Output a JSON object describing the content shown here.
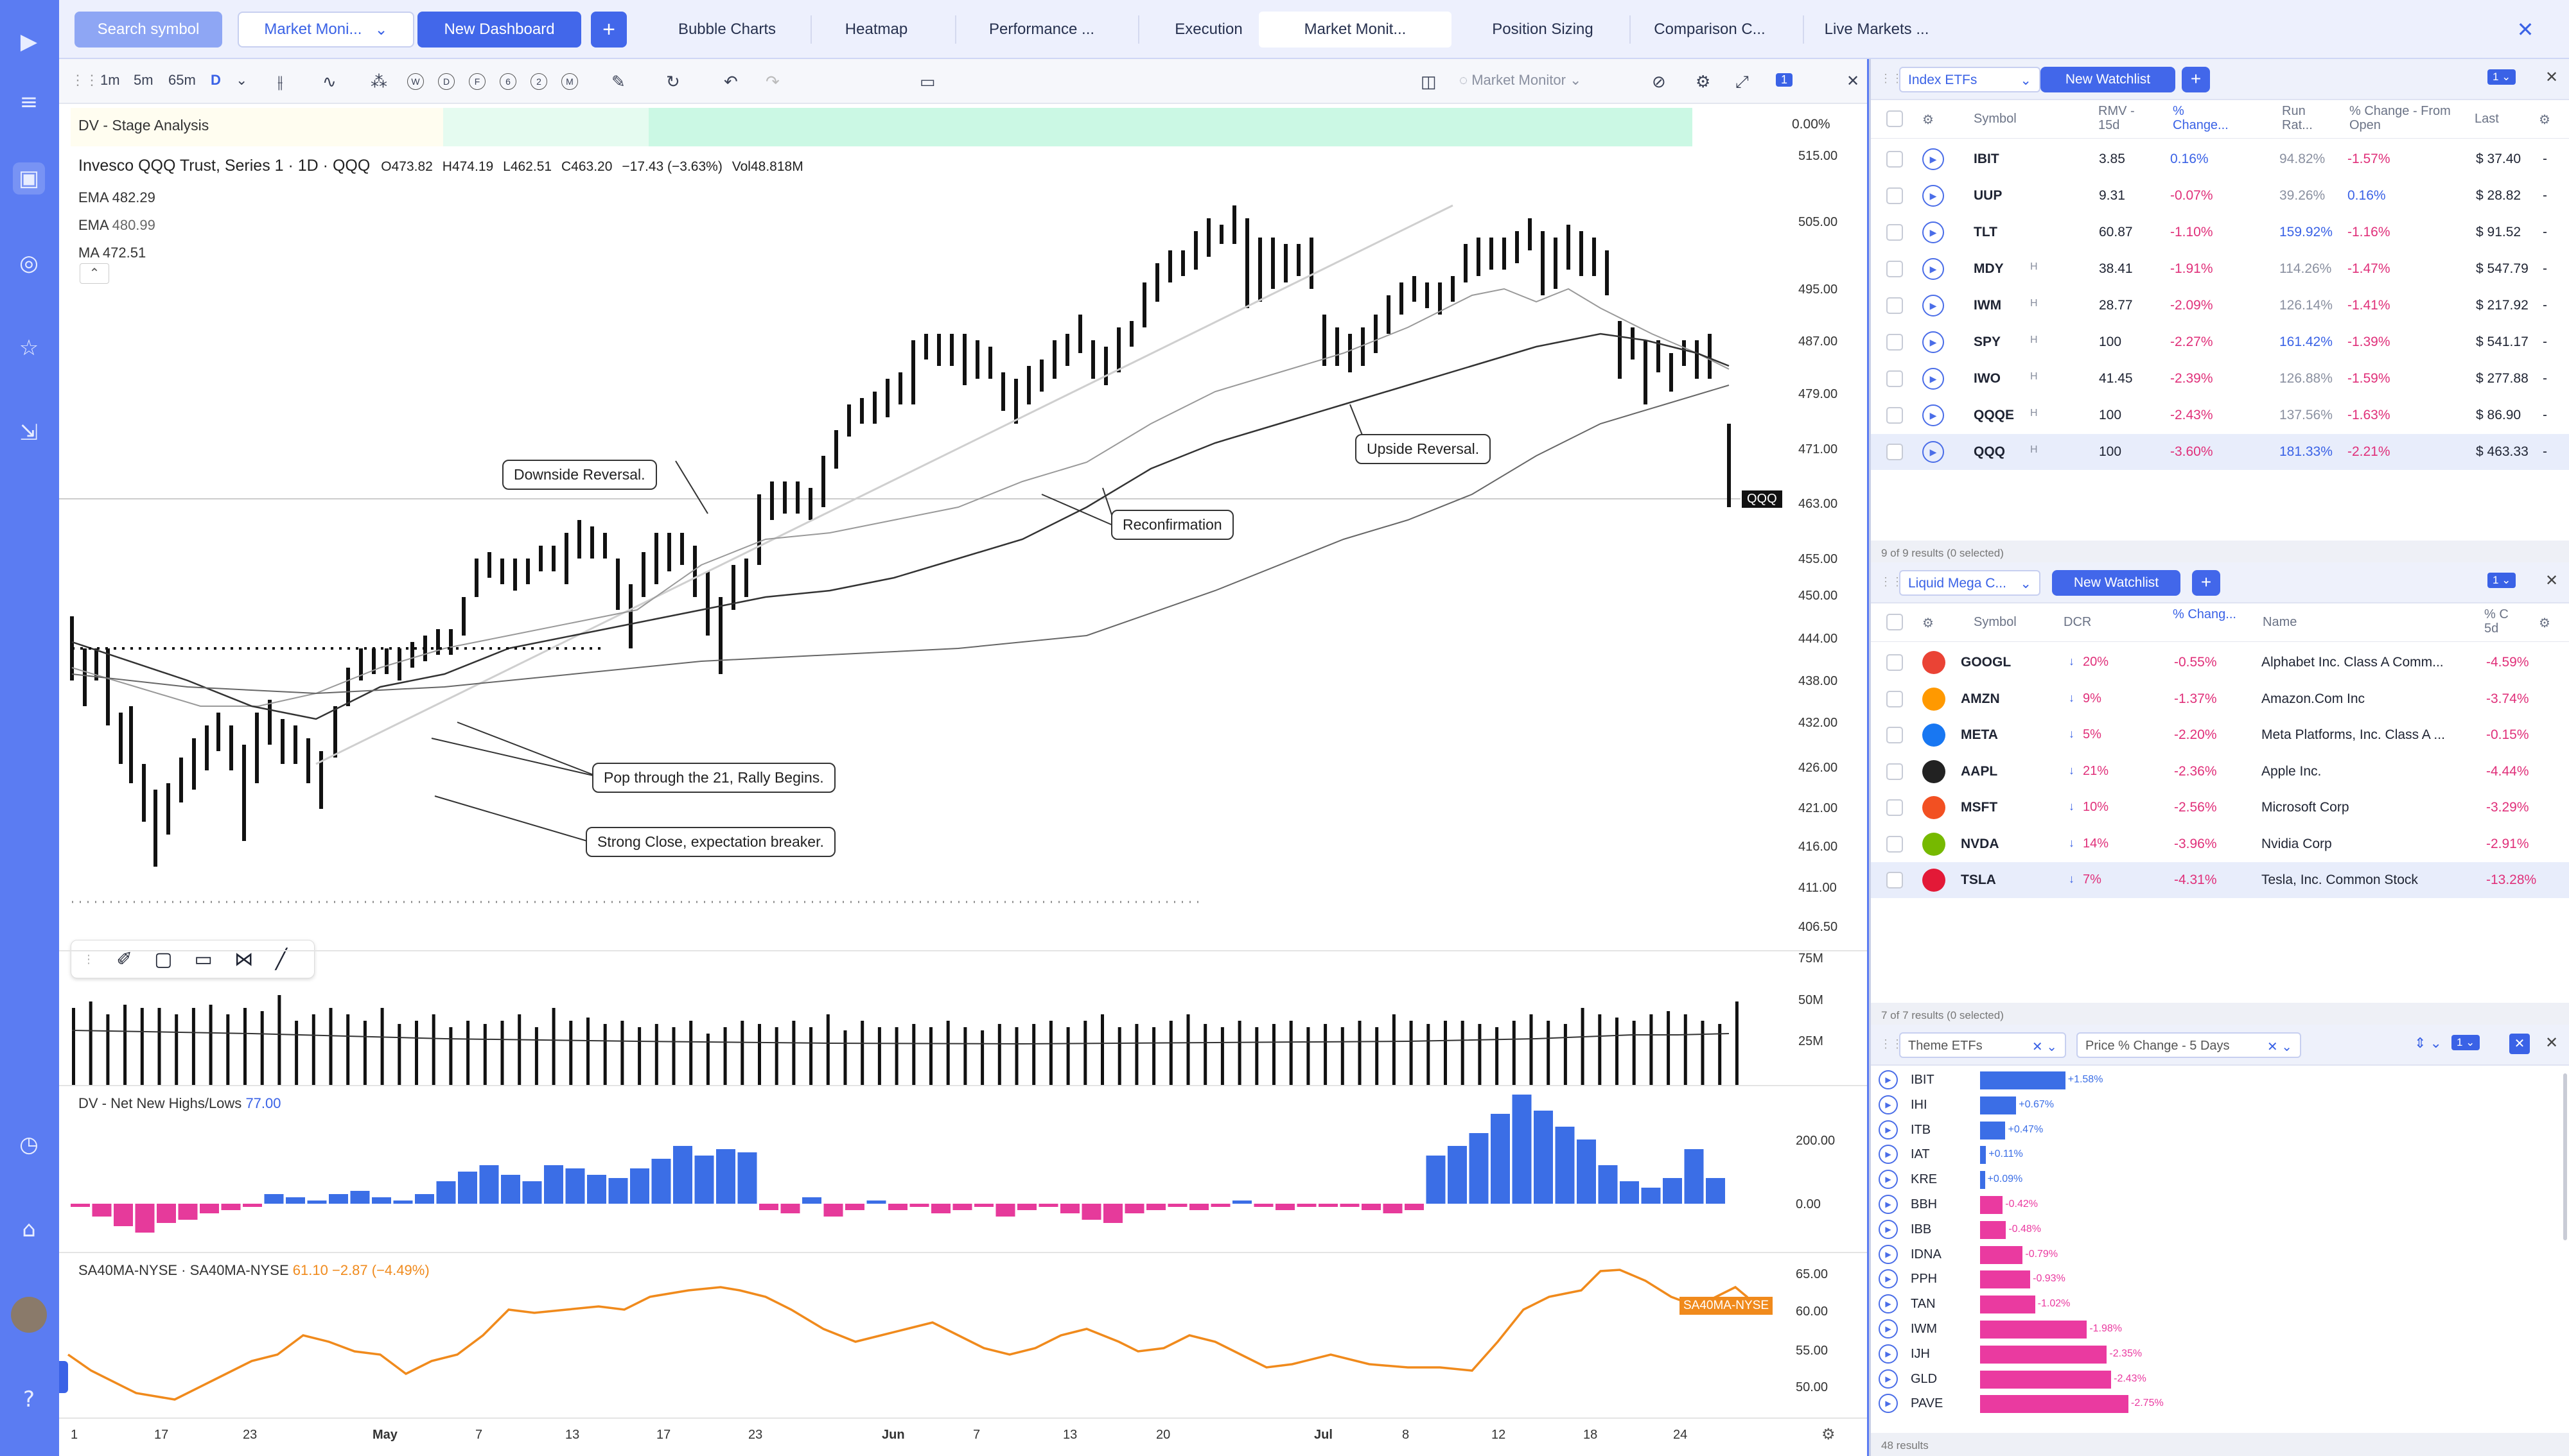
{
  "colors": {
    "accent": "#4267ea",
    "pink": "#e0307a",
    "blue_bar": "#3b6ee6",
    "orange": "#f08a1c",
    "sidebar": "#5b7cf2"
  },
  "sidebar": {
    "icons": [
      "logo-icon",
      "menu-icon",
      "dashboard-icon",
      "radar-icon",
      "star-icon",
      "chart-icon",
      "clock-icon",
      "graduation-icon",
      "avatar",
      "help-icon"
    ]
  },
  "topbar": {
    "search": "Search symbol",
    "dashboard_select": "Market Moni...",
    "new_dashboard": "New Dashboard",
    "add": "+",
    "tabs": [
      "Bubble Charts",
      "Heatmap",
      "Performance ...",
      "Execution",
      "Market Monit...",
      "Position Sizing",
      "Comparison C...",
      "Live Markets ..."
    ],
    "close": "✕"
  },
  "toolbar": {
    "intervals": [
      "1m",
      "5m",
      "65m",
      "D"
    ],
    "periods": [
      "W",
      "D",
      "F",
      "6",
      "2",
      "M"
    ],
    "layout_name": "Market Monitor"
  },
  "chart": {
    "stage_label": "DV - Stage Analysis",
    "stage_pct": "0.00%",
    "title": "Invesco QQQ Trust, Series 1 · 1D · QQQ",
    "ohlc": {
      "o": "O473.82",
      "h": "H474.19",
      "l": "L462.51",
      "c": "C463.20",
      "chg": "−17.43 (−3.63%)",
      "vol": "Vol48.818M"
    },
    "indicators": [
      {
        "name": "EMA",
        "value": "482.29"
      },
      {
        "name": "EMA",
        "value": "480.99"
      },
      {
        "name": "MA",
        "value": "472.51"
      }
    ],
    "price_ticks": [
      "515.00",
      "505.00",
      "495.00",
      "487.00",
      "479.00",
      "471.00",
      "463.00",
      "455.00",
      "450.00",
      "444.00",
      "438.00",
      "432.00",
      "426.00",
      "421.00",
      "416.00",
      "411.00",
      "406.50"
    ],
    "last_tag": "QQQ",
    "callouts": {
      "downside": "Downside Reversal.",
      "reconfirm": "Reconfirmation",
      "upside": "Upside Reversal.",
      "pop": "Pop through the 21, Rally Begins.",
      "strong": "Strong Close, expectation breaker."
    },
    "volume_ticks": [
      "75M",
      "50M",
      "25M"
    ],
    "nnhl_label": "DV - Net New Highs/Lows",
    "nnhl_value": "77.00",
    "nnhl_ticks": [
      "200.00",
      "0.00"
    ],
    "sa_label": "SA40MA-NYSE · SA40MA-NYSE",
    "sa_value": "61.10",
    "sa_chg": "−2.87 (−4.49%)",
    "sa_tag": "SA40MA-NYSE",
    "sa_ticks": [
      "65.00",
      "60.00",
      "55.00",
      "50.00"
    ],
    "x_ticks": [
      "1",
      "17",
      "23",
      "May",
      "7",
      "13",
      "17",
      "23",
      "Jun",
      "7",
      "13",
      "20",
      "Jul",
      "8",
      "12",
      "18",
      "24"
    ]
  },
  "watchlist1": {
    "name": "Index ETFs",
    "new": "New Watchlist",
    "headers": [
      "Symbol",
      "RMV - 15d",
      "% Change...",
      "Run Rat...",
      "% Change - From Open",
      "Last"
    ],
    "rows": [
      {
        "sym": "IBIT",
        "h": "",
        "rmv": "3.85",
        "chg": "0.16%",
        "run": "94.82%",
        "open": "-1.57%",
        "last": "$ 37.40"
      },
      {
        "sym": "UUP",
        "h": "",
        "rmv": "9.31",
        "chg": "-0.07%",
        "run": "39.26%",
        "open": "0.16%",
        "last": "$ 28.82"
      },
      {
        "sym": "TLT",
        "h": "",
        "rmv": "60.87",
        "chg": "-1.10%",
        "run": "159.92%",
        "open": "-1.16%",
        "last": "$ 91.52"
      },
      {
        "sym": "MDY",
        "h": "H",
        "rmv": "38.41",
        "chg": "-1.91%",
        "run": "114.26%",
        "open": "-1.47%",
        "last": "$ 547.79"
      },
      {
        "sym": "IWM",
        "h": "H",
        "rmv": "28.77",
        "chg": "-2.09%",
        "run": "126.14%",
        "open": "-1.41%",
        "last": "$ 217.92"
      },
      {
        "sym": "SPY",
        "h": "H",
        "rmv": "100",
        "chg": "-2.27%",
        "run": "161.42%",
        "open": "-1.39%",
        "last": "$ 541.17"
      },
      {
        "sym": "IWO",
        "h": "H",
        "rmv": "41.45",
        "chg": "-2.39%",
        "run": "126.88%",
        "open": "-1.59%",
        "last": "$ 277.88"
      },
      {
        "sym": "QQQE",
        "h": "H",
        "rmv": "100",
        "chg": "-2.43%",
        "run": "137.56%",
        "open": "-1.63%",
        "last": "$ 86.90"
      },
      {
        "sym": "QQQ",
        "h": "H",
        "rmv": "100",
        "chg": "-3.60%",
        "run": "181.33%",
        "open": "-2.21%",
        "last": "$ 463.33"
      }
    ],
    "footer": "9 of 9 results (0 selected)"
  },
  "watchlist2": {
    "name": "Liquid Mega C...",
    "new": "New Watchlist",
    "headers": [
      "Symbol",
      "DCR",
      "% Chang...",
      "Name",
      "% C 5d"
    ],
    "rows": [
      {
        "sym": "GOOGL",
        "dcr": "20%",
        "chg": "-0.55%",
        "name": "Alphabet Inc. Class A Comm...",
        "c5": "-4.59%"
      },
      {
        "sym": "AMZN",
        "dcr": "9%",
        "chg": "-1.37%",
        "name": "Amazon.Com Inc",
        "c5": "-3.74%"
      },
      {
        "sym": "META",
        "dcr": "5%",
        "chg": "-2.20%",
        "name": "Meta Platforms, Inc. Class A ...",
        "c5": "-0.15%"
      },
      {
        "sym": "AAPL",
        "dcr": "21%",
        "chg": "-2.36%",
        "name": "Apple Inc.",
        "c5": "-4.44%"
      },
      {
        "sym": "MSFT",
        "dcr": "10%",
        "chg": "-2.56%",
        "name": "Microsoft Corp",
        "c5": "-3.29%"
      },
      {
        "sym": "NVDA",
        "dcr": "14%",
        "chg": "-3.96%",
        "name": "Nvidia Corp",
        "c5": "-2.91%"
      },
      {
        "sym": "TSLA",
        "dcr": "7%",
        "chg": "-4.31%",
        "name": "Tesla, Inc. Common Stock",
        "c5": "-13.28%"
      }
    ],
    "footer": "7 of 7 results (0 selected)"
  },
  "themes": {
    "filter": "Theme ETFs",
    "sort": "Price % Change - 5 Days",
    "footer": "48 results",
    "chart_data": {
      "type": "bar",
      "categories": [
        "IBIT",
        "IHI",
        "ITB",
        "IAT",
        "KRE",
        "BBH",
        "IBB",
        "IDNA",
        "PPH",
        "TAN",
        "IWM",
        "IJH",
        "GLD",
        "PAVE"
      ],
      "values": [
        1.58,
        0.67,
        0.47,
        0.11,
        0.09,
        -0.42,
        -0.48,
        -0.79,
        -0.93,
        -1.02,
        -1.98,
        -2.35,
        -2.43,
        -2.75
      ],
      "labels": [
        "+1.58%",
        "+0.67%",
        "+0.47%",
        "+0.11%",
        "+0.09%",
        "-0.42%",
        "-0.48%",
        "-0.79%",
        "-0.93%",
        "-1.02%",
        "-1.98%",
        "-2.35%",
        "-2.43%",
        "-2.75%"
      ]
    }
  }
}
